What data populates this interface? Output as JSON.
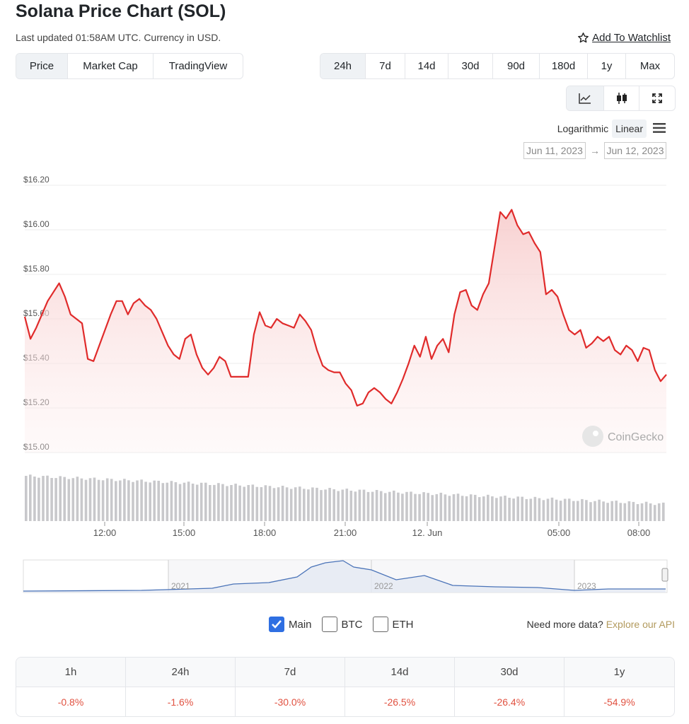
{
  "header": {
    "title": "Solana Price Chart (SOL)",
    "subtitle": "Last updated 01:58AM UTC. Currency in USD.",
    "watchlist_label": "Add To Watchlist"
  },
  "view_tabs": [
    {
      "label": "Price",
      "active": true
    },
    {
      "label": "Market Cap",
      "active": false
    },
    {
      "label": "TradingView",
      "active": false
    }
  ],
  "range_tabs": [
    {
      "label": "24h",
      "active": true
    },
    {
      "label": "7d",
      "active": false
    },
    {
      "label": "14d",
      "active": false
    },
    {
      "label": "30d",
      "active": false
    },
    {
      "label": "90d",
      "active": false
    },
    {
      "label": "180d",
      "active": false
    },
    {
      "label": "1y",
      "active": false
    },
    {
      "label": "Max",
      "active": false
    }
  ],
  "chart_type_icons": [
    "line-chart-icon",
    "candlestick-icon",
    "fullscreen-icon"
  ],
  "scale": {
    "log_label": "Logarithmic",
    "linear_label": "Linear",
    "active": "linear"
  },
  "date_range": {
    "from": "Jun 11, 2023",
    "arrow": "→",
    "to": "Jun 12, 2023"
  },
  "watermark": "CoinGecko",
  "colors": {
    "line": "#e02b2b",
    "volume": "#c8c8cb",
    "navigator": "#4a73b8",
    "negative": "#e15241",
    "checkbox": "#2f6fe2",
    "link": "#b29a5d"
  },
  "chart_data": {
    "type": "line",
    "y_ticks": [
      "$16.20",
      "$16.00",
      "$15.80",
      "$15.60",
      "$15.40",
      "$15.20",
      "$15.00"
    ],
    "ylim": [
      15.0,
      16.2
    ],
    "x_ticks": [
      "12:00",
      "15:00",
      "18:00",
      "21:00",
      "12. Jun",
      "05:00",
      "08:00"
    ],
    "series": [
      {
        "values": [
          15.61,
          15.51,
          15.56,
          15.62,
          15.68,
          15.72,
          15.76,
          15.7,
          15.62,
          15.6,
          15.58,
          15.42,
          15.41,
          15.48,
          15.55,
          15.62,
          15.68,
          15.68,
          15.62,
          15.67,
          15.69,
          15.66,
          15.64,
          15.6,
          15.54,
          15.48,
          15.44,
          15.42,
          15.51,
          15.53,
          15.44,
          15.38,
          15.35,
          15.38,
          15.43,
          15.41,
          15.34,
          15.34,
          15.34,
          15.34,
          15.53,
          15.63,
          15.57,
          15.56,
          15.6,
          15.58,
          15.57,
          15.56,
          15.62,
          15.59,
          15.55,
          15.46,
          15.39,
          15.37,
          15.36,
          15.36,
          15.31,
          15.28,
          15.21,
          15.22,
          15.27,
          15.29,
          15.27,
          15.24,
          15.22,
          15.27,
          15.33,
          15.4,
          15.48,
          15.43,
          15.52,
          15.42,
          15.48,
          15.51,
          15.45,
          15.62,
          15.72,
          15.73,
          15.66,
          15.64,
          15.71,
          15.76,
          15.92,
          16.08,
          16.05,
          16.09,
          16.02,
          15.98,
          15.99,
          15.94,
          15.9,
          15.71,
          15.73,
          15.7,
          15.62,
          15.55,
          15.53,
          15.55,
          15.47,
          15.49,
          15.52,
          15.5,
          15.52,
          15.46,
          15.44,
          15.48,
          15.46,
          15.41,
          15.47,
          15.46,
          15.37,
          15.32,
          15.35
        ]
      }
    ],
    "navigator": {
      "year_labels": [
        "2021",
        "2022",
        "2023"
      ]
    }
  },
  "legend": {
    "main": "Main",
    "btc": "BTC",
    "eth": "ETH"
  },
  "more_data": {
    "prefix": "Need more data?",
    "link": "Explore our API"
  },
  "performance": {
    "headers": [
      "1h",
      "24h",
      "7d",
      "14d",
      "30d",
      "1y"
    ],
    "values": [
      "-0.8%",
      "-1.6%",
      "-30.0%",
      "-26.5%",
      "-26.4%",
      "-54.9%"
    ]
  }
}
